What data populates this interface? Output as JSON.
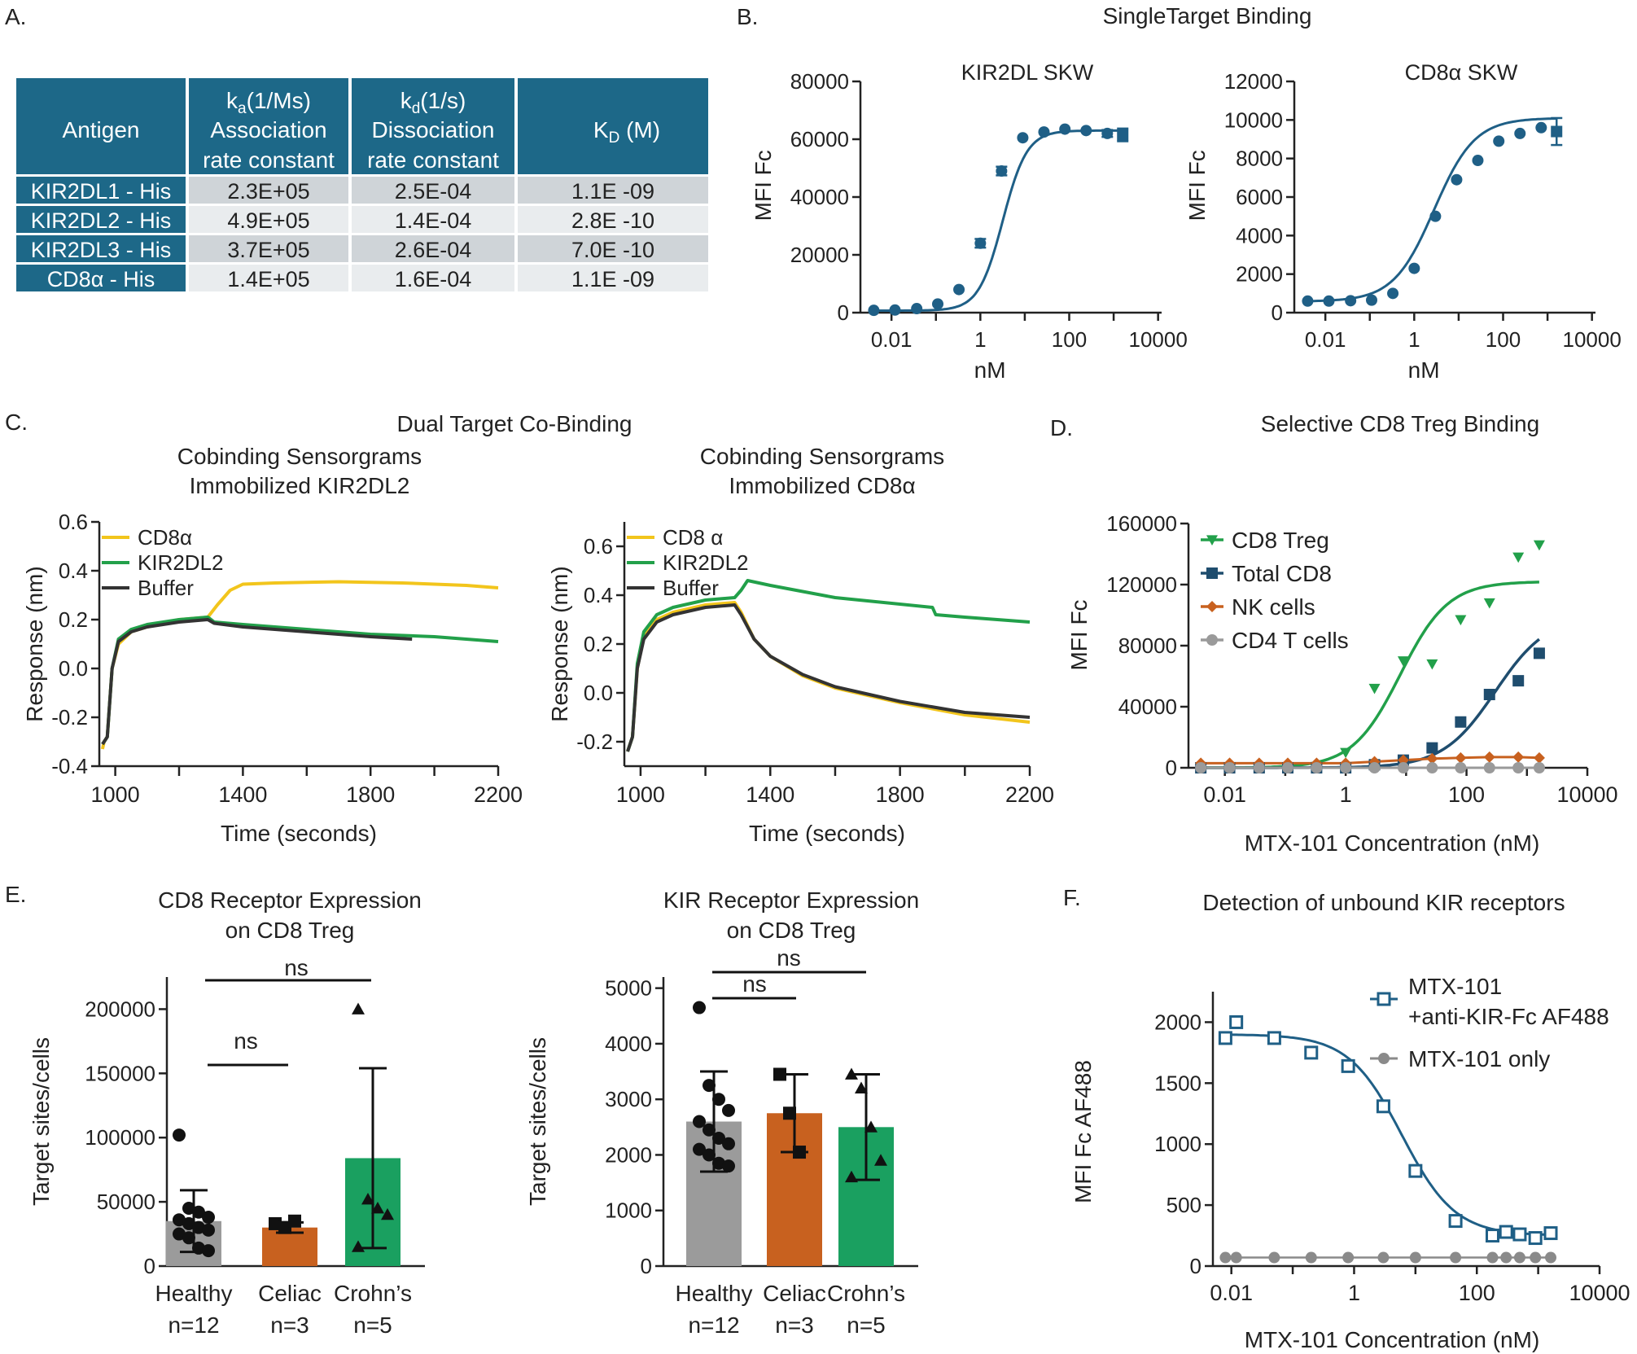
{
  "panel_labels": {
    "A": "A.",
    "B": "B.",
    "C": "C.",
    "D": "D.",
    "E": "E.",
    "F": "F."
  },
  "colors": {
    "teal": "#1f5f86",
    "table_header": "#1d6888",
    "row_dark": "#cfd4d8",
    "row_light": "#e9ecee",
    "yellow": "#f2c51c",
    "green": "#22a04a",
    "black": "#333333",
    "orange": "#c8611f",
    "gray": "#9a9a9a",
    "bar_green": "#1aa060",
    "bar_gray": "#9b9b9b",
    "bar_orange": "#c8611f"
  },
  "table": {
    "headers": [
      {
        "main": "Antigen"
      },
      {
        "sym": "k",
        "sub": "a",
        "unit": "(1/Ms)",
        "line2": "Association",
        "line3": "rate constant"
      },
      {
        "sym": "k",
        "sub": "d",
        "unit": "(1/s)",
        "line2": "Dissociation",
        "line3": "rate constant"
      },
      {
        "sym": "K",
        "sub": "D",
        "unit": " (M)"
      }
    ],
    "rows": [
      [
        "KIR2DL1 - His",
        "2.3E+05",
        "2.5E-04",
        "1.1E -09"
      ],
      [
        "KIR2DL2 - His",
        "4.9E+05",
        "1.4E-04",
        "2.8E -10"
      ],
      [
        "KIR2DL3 - His",
        "3.7E+05",
        "2.6E-04",
        "7.0E -10"
      ],
      [
        "CD8α - His",
        "1.4E+05",
        "1.6E-04",
        "1.1E -09"
      ]
    ]
  },
  "section_titles": {
    "B": "SingleTarget Binding",
    "C": "Dual Target Co-Binding",
    "D": "Selective CD8 Treg Binding",
    "F": "Detection of unbound KIR receptors"
  },
  "chart_data": [
    {
      "id": "B1",
      "type": "scatter",
      "title": "KIR2DL SKW",
      "xlabel": "nM",
      "ylabel": "MFI Fc",
      "xscale": "log",
      "xlim": [
        0.002,
        12000
      ],
      "ylim": [
        0,
        80000
      ],
      "xticks": [
        0.01,
        1,
        100,
        10000
      ],
      "xtick_labels": [
        "0.01",
        "1",
        "100",
        "10000"
      ],
      "yticks": [
        0,
        20000,
        40000,
        60000,
        80000
      ],
      "ytick_labels": [
        "0",
        "20000",
        "40000",
        "60000",
        "80000"
      ],
      "series": [
        {
          "name": "KIR2DL SKW",
          "color": "#1f5f86",
          "x": [
            0.004,
            0.012,
            0.037,
            0.11,
            0.33,
            1,
            3,
            9,
            27,
            80,
            240,
            720,
            1600
          ],
          "y": [
            800,
            900,
            1400,
            3000,
            8000,
            24000,
            49000,
            60500,
            62500,
            63500,
            63000,
            62000,
            61500
          ],
          "err": [
            0,
            0,
            0,
            0,
            0,
            1500,
            1500,
            0,
            0,
            0,
            0,
            1200,
            2200
          ],
          "fit": {
            "bottom": 700,
            "top": 63000,
            "ec50": 3.2,
            "hill": 1.6
          }
        }
      ]
    },
    {
      "id": "B2",
      "type": "scatter",
      "title": "CD8α SKW",
      "xlabel": "nM",
      "ylabel": "MFI Fc",
      "xscale": "log",
      "xlim": [
        0.002,
        12000
      ],
      "ylim": [
        0,
        12000
      ],
      "xticks": [
        0.01,
        1,
        100,
        10000
      ],
      "xtick_labels": [
        "0.01",
        "1",
        "100",
        "10000"
      ],
      "yticks": [
        0,
        2000,
        4000,
        6000,
        8000,
        10000,
        12000
      ],
      "ytick_labels": [
        "0",
        "2000",
        "4000",
        "6000",
        "8000",
        "10000",
        "12000"
      ],
      "series": [
        {
          "name": "CD8α SKW",
          "color": "#1f5f86",
          "x": [
            0.004,
            0.012,
            0.037,
            0.11,
            0.33,
            1,
            3,
            9,
            27,
            80,
            240,
            720,
            1600
          ],
          "y": [
            600,
            600,
            620,
            650,
            1000,
            2300,
            5000,
            6900,
            7900,
            8900,
            9300,
            9600,
            9400
          ],
          "err": [
            0,
            0,
            0,
            0,
            0,
            0,
            0,
            0,
            0,
            0,
            0,
            0,
            700
          ],
          "fit": {
            "bottom": 580,
            "top": 10100,
            "ec50": 2.8,
            "hill": 0.95
          }
        }
      ]
    },
    {
      "id": "C1",
      "type": "line",
      "title": "Cobinding Sensorgrams",
      "subtitle": "Immobilized KIR2DL2",
      "xlabel": "Time  (seconds)",
      "ylabel": "Response  (nm)",
      "xlim": [
        950,
        2200
      ],
      "ylim": [
        -0.4,
        0.6
      ],
      "xticks": [
        1000,
        1400,
        1800,
        2200
      ],
      "xtick_labels": [
        "1000",
        "1400",
        "1800",
        "2200"
      ],
      "yticks": [
        -0.4,
        -0.2,
        0.0,
        0.2,
        0.4,
        0.6
      ],
      "ytick_labels": [
        "-0.4",
        "-0.2",
        "0.0",
        "0.2",
        "0.4",
        "0.6"
      ],
      "legend": [
        "CD8α",
        "KIR2DL2",
        "Buffer"
      ],
      "series": [
        {
          "name": "CD8α",
          "color": "#f2c51c",
          "x": [
            960,
            965,
            975,
            990,
            1010,
            1050,
            1100,
            1200,
            1290,
            1320,
            1360,
            1400,
            1500,
            1700,
            1900,
            2100,
            2200
          ],
          "y": [
            -0.33,
            -0.3,
            -0.28,
            0.0,
            0.1,
            0.15,
            0.17,
            0.2,
            0.21,
            0.26,
            0.32,
            0.345,
            0.35,
            0.355,
            0.35,
            0.34,
            0.33
          ]
        },
        {
          "name": "KIR2DL2",
          "color": "#22a04a",
          "x": [
            960,
            965,
            975,
            990,
            1010,
            1050,
            1100,
            1200,
            1290,
            1310,
            1400,
            1600,
            1800,
            2000,
            2200
          ],
          "y": [
            -0.31,
            -0.3,
            -0.28,
            0.0,
            0.12,
            0.16,
            0.18,
            0.2,
            0.21,
            0.19,
            0.18,
            0.16,
            0.14,
            0.13,
            0.11
          ]
        },
        {
          "name": "Buffer",
          "color": "#333333",
          "x": [
            960,
            965,
            975,
            990,
            1010,
            1050,
            1100,
            1200,
            1290,
            1310,
            1400,
            1600,
            1800,
            1930
          ],
          "y": [
            -0.31,
            -0.3,
            -0.28,
            0.0,
            0.11,
            0.15,
            0.17,
            0.19,
            0.2,
            0.185,
            0.17,
            0.15,
            0.13,
            0.12
          ]
        }
      ]
    },
    {
      "id": "C2",
      "type": "line",
      "title": "Cobinding Sensorgrams",
      "subtitle": "Immobilized CD8α",
      "xlabel": "Time  (seconds)",
      "ylabel": "Response  (nm)",
      "xlim": [
        950,
        2200
      ],
      "ylim": [
        -0.3,
        0.7
      ],
      "xticks": [
        1000,
        1400,
        1800,
        2200
      ],
      "xtick_labels": [
        "1000",
        "1400",
        "1800",
        "2200"
      ],
      "yticks": [
        -0.2,
        0.0,
        0.2,
        0.4,
        0.6
      ],
      "ytick_labels": [
        "-0.2",
        "0.0",
        "0.2",
        "0.4",
        "0.6"
      ],
      "legend": [
        "CD8 α",
        "KIR2DL2",
        "Buffer"
      ],
      "series": [
        {
          "name": "CD8 α",
          "color": "#f2c51c",
          "x": [
            960,
            965,
            975,
            990,
            1010,
            1050,
            1100,
            1200,
            1290,
            1310,
            1350,
            1400,
            1500,
            1600,
            1800,
            2000,
            2200
          ],
          "y": [
            -0.24,
            -0.22,
            -0.18,
            0.1,
            0.23,
            0.3,
            0.33,
            0.36,
            0.37,
            0.33,
            0.22,
            0.15,
            0.07,
            0.02,
            -0.04,
            -0.09,
            -0.12
          ]
        },
        {
          "name": "KIR2DL2",
          "color": "#22a04a",
          "x": [
            960,
            965,
            975,
            990,
            1010,
            1050,
            1100,
            1200,
            1290,
            1310,
            1330,
            1400,
            1600,
            1900,
            1910,
            2000,
            2200
          ],
          "y": [
            -0.24,
            -0.22,
            -0.18,
            0.12,
            0.25,
            0.32,
            0.35,
            0.38,
            0.39,
            0.42,
            0.46,
            0.44,
            0.39,
            0.35,
            0.32,
            0.31,
            0.29
          ]
        },
        {
          "name": "Buffer",
          "color": "#333333",
          "x": [
            960,
            965,
            975,
            990,
            1010,
            1050,
            1100,
            1200,
            1290,
            1310,
            1350,
            1400,
            1500,
            1600,
            1800,
            2000,
            2200
          ],
          "y": [
            -0.24,
            -0.22,
            -0.18,
            0.1,
            0.22,
            0.29,
            0.32,
            0.35,
            0.36,
            0.32,
            0.22,
            0.15,
            0.075,
            0.025,
            -0.035,
            -0.08,
            -0.1
          ]
        }
      ]
    },
    {
      "id": "D",
      "type": "scatter",
      "title": "Selective CD8 Treg Binding",
      "xlabel": "MTX-101 Concentration (nM)",
      "ylabel": "MFI Fc",
      "xscale": "log",
      "xlim": [
        0.0025,
        10000
      ],
      "ylim": [
        0,
        160000
      ],
      "xticks": [
        0.01,
        1,
        100,
        10000
      ],
      "xtick_labels": [
        "0.01",
        "1",
        "100",
        "10000"
      ],
      "yticks": [
        0,
        40000,
        80000,
        120000,
        160000
      ],
      "ytick_labels": [
        "0",
        "40000",
        "80000",
        "120000",
        "160000"
      ],
      "series": [
        {
          "name": "CD8 Treg",
          "color": "#22a04a",
          "marker": "triangle-down",
          "x": [
            0.004,
            0.012,
            0.037,
            0.11,
            0.33,
            1,
            3,
            9,
            27,
            80,
            240,
            720,
            1600
          ],
          "y": [
            0,
            0,
            0,
            0,
            0,
            10000,
            52000,
            70000,
            68000,
            97000,
            108000,
            138000,
            146000
          ],
          "fit": {
            "bottom": 0,
            "top": 122000,
            "ec50": 8,
            "hill": 1.1
          }
        },
        {
          "name": "Total CD8",
          "color": "#1f4d6e",
          "marker": "square",
          "x": [
            0.004,
            0.012,
            0.037,
            0.11,
            0.33,
            1,
            3,
            9,
            27,
            80,
            240,
            720,
            1600
          ],
          "y": [
            0,
            0,
            0,
            0,
            0,
            0,
            2000,
            5000,
            13000,
            30000,
            48000,
            57000,
            75000
          ],
          "fit": {
            "bottom": 0,
            "top": 100000,
            "ec50": 300,
            "hill": 1.0
          }
        },
        {
          "name": "NK cells",
          "color": "#c8611f",
          "marker": "diamond",
          "x": [
            0.004,
            0.012,
            0.037,
            0.11,
            0.33,
            1,
            3,
            9,
            27,
            80,
            240,
            720,
            1600
          ],
          "y": [
            3000,
            3000,
            3000,
            3000,
            3000,
            3000,
            4000,
            5000,
            6000,
            6500,
            7000,
            7000,
            6500
          ]
        },
        {
          "name": "CD4 T cells",
          "color": "#9a9a9a",
          "marker": "circle",
          "x": [
            0.004,
            0.012,
            0.037,
            0.11,
            0.33,
            1,
            3,
            9,
            27,
            80,
            240,
            720,
            1600
          ],
          "y": [
            0,
            0,
            0,
            0,
            0,
            0,
            0,
            0,
            0,
            0,
            0,
            0,
            0
          ]
        }
      ]
    },
    {
      "id": "E1",
      "type": "bar",
      "title": "CD8 Receptor Expression",
      "subtitle": "on CD8 Treg",
      "ylabel": "Target sites/cells",
      "ylim": [
        0,
        225000
      ],
      "yticks": [
        0,
        50000,
        100000,
        150000,
        200000
      ],
      "ytick_labels": [
        "0",
        "50000",
        "100000",
        "150000",
        "200000"
      ],
      "categories": [
        "Healthy",
        "Celiac",
        "Crohn’s"
      ],
      "n_labels": [
        "n=12",
        "n=3",
        "n=5"
      ],
      "values": [
        35000,
        30000,
        84000
      ],
      "sd": [
        24000,
        4000,
        70000
      ],
      "colors": [
        "#9b9b9b",
        "#c8611f",
        "#1aa060"
      ],
      "markers": [
        "circle",
        "square",
        "triangle"
      ],
      "points": [
        [
          102000,
          45000,
          42000,
          38000,
          36000,
          33000,
          30000,
          28000,
          25000,
          22000,
          14000,
          12000
        ],
        [
          33000,
          30000,
          35000
        ],
        [
          200000,
          52000,
          45000,
          40000,
          15000
        ]
      ],
      "significance": [
        {
          "from": 0,
          "to": 1,
          "label": "ns"
        },
        {
          "from": 0,
          "to": 2,
          "label": "ns"
        }
      ]
    },
    {
      "id": "E2",
      "type": "bar",
      "title": "KIR Receptor Expression",
      "subtitle": "on CD8 Treg",
      "ylabel": "Target sites/cells",
      "ylim": [
        0,
        5200
      ],
      "yticks": [
        0,
        1000,
        2000,
        3000,
        4000,
        5000
      ],
      "ytick_labels": [
        "0",
        "1000",
        "2000",
        "3000",
        "4000",
        "5000"
      ],
      "categories": [
        "Healthy",
        "Celiac",
        "Crohn’s"
      ],
      "n_labels": [
        "n=12",
        "n=3",
        "n=5"
      ],
      "values": [
        2600,
        2750,
        2500
      ],
      "sd": [
        900,
        700,
        950
      ],
      "colors": [
        "#9b9b9b",
        "#c8611f",
        "#1aa060"
      ],
      "markers": [
        "circle",
        "square",
        "triangle"
      ],
      "points": [
        [
          4650,
          3250,
          3000,
          2800,
          2600,
          2450,
          2300,
          2200,
          2100,
          2000,
          1850,
          1800
        ],
        [
          3450,
          2750,
          2050
        ],
        [
          3450,
          3200,
          2500,
          1900,
          1600
        ]
      ],
      "significance": [
        {
          "from": 0,
          "to": 1,
          "label": "ns"
        },
        {
          "from": 0,
          "to": 2,
          "label": "ns"
        }
      ]
    },
    {
      "id": "F",
      "type": "scatter",
      "title": "Detection of unbound KIR receptors",
      "xlabel": "MTX-101 Concentration (nM)",
      "ylabel": "MFI Fc AF488",
      "xscale": "log",
      "xlim": [
        0.005,
        10000
      ],
      "ylim": [
        0,
        2250
      ],
      "xticks": [
        0.01,
        1,
        100,
        10000
      ],
      "xtick_labels": [
        "0.01",
        "1",
        "100",
        "10000"
      ],
      "yticks": [
        0,
        500,
        1000,
        1500,
        2000
      ],
      "ytick_labels": [
        "0",
        "500",
        "1000",
        "1500",
        "2000"
      ],
      "series": [
        {
          "name": "MTX-101",
          "name2": "+anti-KIR-Fc AF488",
          "color": "#1f5f86",
          "marker": "open-square",
          "x": [
            0.008,
            0.012,
            0.05,
            0.2,
            0.8,
            3,
            10,
            45,
            180,
            300,
            500,
            900,
            1600
          ],
          "y": [
            1870,
            2000,
            1870,
            1750,
            1640,
            1310,
            780,
            370,
            250,
            280,
            260,
            230,
            270
          ],
          "fit": {
            "bottom": 250,
            "top": 1900,
            "ec50": 6,
            "hill": 1.0
          }
        },
        {
          "name": "MTX-101 only",
          "color": "#8a8a8a",
          "marker": "circle",
          "x": [
            0.008,
            0.012,
            0.05,
            0.2,
            0.8,
            3,
            10,
            45,
            180,
            300,
            500,
            900,
            1600
          ],
          "y": [
            70,
            70,
            70,
            70,
            70,
            70,
            70,
            70,
            70,
            70,
            70,
            70,
            70
          ]
        }
      ]
    }
  ]
}
